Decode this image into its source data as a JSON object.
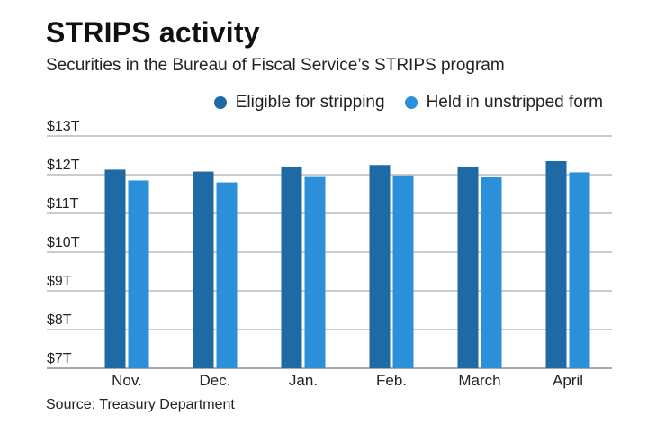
{
  "colors": {
    "series1": "#1f6aa5",
    "series2": "#2b8fd9",
    "grid": "#9a9a9a",
    "text": "#222222"
  },
  "chart_data": {
    "type": "bar",
    "title": "STRIPS activity",
    "subtitle": "Securities in the Bureau of Fiscal Service’s STRIPS program",
    "source": "Source: Treasury Department",
    "categories": [
      "Nov.",
      "Dec.",
      "Jan.",
      "Feb.",
      "March",
      "April"
    ],
    "series": [
      {
        "name": "Eligible for stripping",
        "values": [
          12.13,
          12.08,
          12.21,
          12.25,
          12.21,
          12.35
        ]
      },
      {
        "name": "Held in unstripped form",
        "values": [
          11.85,
          11.8,
          11.94,
          11.98,
          11.93,
          12.06
        ]
      }
    ],
    "yticks": [
      "$7T",
      "$8T",
      "$9T",
      "$10T",
      "$11T",
      "$12T",
      "$13T"
    ],
    "ylim": [
      7,
      13
    ],
    "grid": true,
    "legend_position": "top-right"
  }
}
